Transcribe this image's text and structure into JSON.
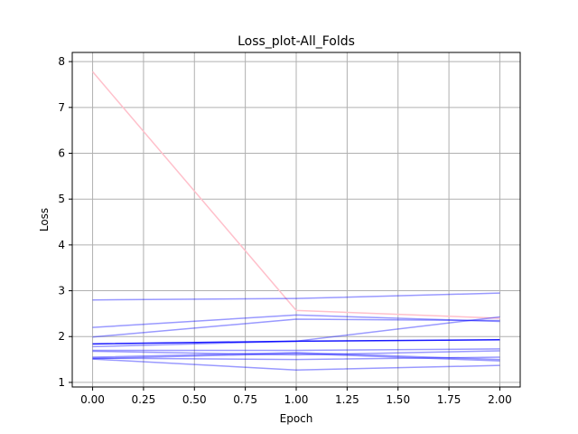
{
  "chart_data": {
    "type": "line",
    "title": "Loss_plot-All_Folds",
    "xlabel": "Epoch",
    "ylabel": "Loss",
    "xlim": [
      -0.1,
      2.1
    ],
    "ylim": [
      0.9,
      8.2
    ],
    "x_ticks": [
      "0.00",
      "0.25",
      "0.50",
      "0.75",
      "1.00",
      "1.25",
      "1.50",
      "1.75",
      "2.00"
    ],
    "y_ticks": [
      "1",
      "2",
      "3",
      "4",
      "5",
      "6",
      "7",
      "8"
    ],
    "grid": true,
    "x": [
      0,
      1,
      2
    ],
    "series": [
      {
        "values": [
          7.78,
          2.57,
          2.4
        ],
        "color": "#ffc0cb",
        "opacity": 1.0
      },
      {
        "values": [
          2.8,
          2.83,
          2.95
        ],
        "color": "#0000ff",
        "opacity": 0.4
      },
      {
        "values": [
          2.2,
          2.47,
          2.33
        ],
        "color": "#0000ff",
        "opacity": 0.4
      },
      {
        "values": [
          1.99,
          2.38,
          2.35
        ],
        "color": "#0000ff",
        "opacity": 0.4
      },
      {
        "values": [
          1.78,
          1.9,
          2.43
        ],
        "color": "#0000ff",
        "opacity": 0.4
      },
      {
        "values": [
          1.84,
          1.9,
          1.93
        ],
        "color": "#0000ff",
        "opacity": 0.9
      },
      {
        "values": [
          1.7,
          1.7,
          1.73
        ],
        "color": "#0000ff",
        "opacity": 0.4
      },
      {
        "values": [
          1.68,
          1.6,
          1.69
        ],
        "color": "#0000ff",
        "opacity": 0.4
      },
      {
        "values": [
          1.55,
          1.65,
          1.5
        ],
        "color": "#0000ff",
        "opacity": 0.4
      },
      {
        "values": [
          1.53,
          1.5,
          1.55
        ],
        "color": "#0000ff",
        "opacity": 0.4
      },
      {
        "values": [
          1.52,
          1.63,
          1.47
        ],
        "color": "#0000ff",
        "opacity": 0.4
      },
      {
        "values": [
          1.51,
          1.27,
          1.37
        ],
        "color": "#0000ff",
        "opacity": 0.4
      }
    ]
  }
}
